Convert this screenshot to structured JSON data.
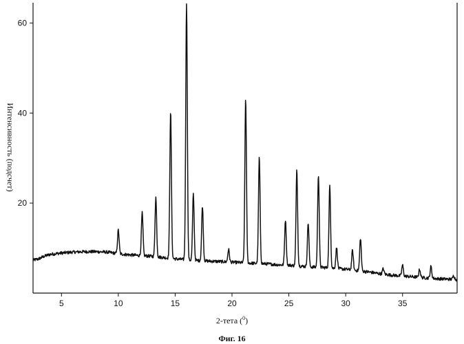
{
  "figure": {
    "caption": "Фиг. 16"
  },
  "chart_data": {
    "type": "line",
    "title": "",
    "xlabel": "2-тета (",
    "xlabel_sup": "0",
    "xlabel_close": ")",
    "ylabel": "Интенсивность (подсчет)",
    "xlim": [
      2.5,
      39.8
    ],
    "ylim": [
      0,
      64.5
    ],
    "x_ticks": [
      5,
      10,
      15,
      20,
      25,
      30,
      35
    ],
    "y_ticks": [
      20,
      40,
      60
    ],
    "x_tick_labels": [
      "5",
      "10",
      "15",
      "20",
      "25",
      "30",
      "35"
    ],
    "y_tick_labels": [
      "20",
      "40",
      "60"
    ],
    "grid": false,
    "line_color": "#111111",
    "baseline": [
      [
        2.5,
        7.3
      ],
      [
        3.0,
        7.6
      ],
      [
        3.5,
        8.2
      ],
      [
        4.0,
        8.6
      ],
      [
        5.0,
        8.9
      ],
      [
        6.0,
        9.1
      ],
      [
        7.0,
        9.2
      ],
      [
        8.0,
        9.2
      ],
      [
        9.0,
        9.1
      ],
      [
        9.6,
        8.9
      ],
      [
        10.5,
        8.6
      ],
      [
        11.5,
        8.4
      ],
      [
        12.8,
        8.2
      ],
      [
        14.0,
        7.9
      ],
      [
        15.0,
        7.6
      ],
      [
        16.5,
        7.3
      ],
      [
        18.0,
        7.1
      ],
      [
        19.0,
        7.0
      ],
      [
        20.5,
        6.8
      ],
      [
        22.0,
        6.6
      ],
      [
        23.0,
        6.5
      ],
      [
        24.0,
        6.3
      ],
      [
        25.0,
        6.2
      ],
      [
        26.0,
        6.0
      ],
      [
        27.0,
        5.8
      ],
      [
        28.0,
        5.7
      ],
      [
        29.0,
        5.5
      ],
      [
        30.0,
        5.3
      ],
      [
        31.0,
        5.0
      ],
      [
        32.0,
        4.7
      ],
      [
        33.0,
        4.3
      ],
      [
        34.0,
        4.0
      ],
      [
        35.0,
        3.8
      ],
      [
        36.0,
        3.6
      ],
      [
        37.0,
        3.4
      ],
      [
        38.0,
        3.2
      ],
      [
        39.0,
        3.1
      ],
      [
        39.8,
        3.0
      ]
    ],
    "peaks": [
      {
        "x": 10.0,
        "y": 14.0
      },
      {
        "x": 12.1,
        "y": 17.8
      },
      {
        "x": 13.3,
        "y": 21.3
      },
      {
        "x": 14.6,
        "y": 40.4
      },
      {
        "x": 16.0,
        "y": 64.5
      },
      {
        "x": 16.6,
        "y": 22.0
      },
      {
        "x": 17.4,
        "y": 19.4
      },
      {
        "x": 19.7,
        "y": 9.7
      },
      {
        "x": 21.2,
        "y": 43.2
      },
      {
        "x": 22.4,
        "y": 30.2
      },
      {
        "x": 24.7,
        "y": 16.3
      },
      {
        "x": 25.7,
        "y": 27.3
      },
      {
        "x": 26.7,
        "y": 15.6
      },
      {
        "x": 27.6,
        "y": 26.4
      },
      {
        "x": 28.6,
        "y": 23.9
      },
      {
        "x": 29.2,
        "y": 10.1
      },
      {
        "x": 30.6,
        "y": 9.5
      },
      {
        "x": 31.3,
        "y": 12.2
      },
      {
        "x": 33.3,
        "y": 5.4
      },
      {
        "x": 35.0,
        "y": 6.2
      },
      {
        "x": 36.5,
        "y": 5.3
      },
      {
        "x": 37.5,
        "y": 5.9
      },
      {
        "x": 39.5,
        "y": 3.9
      }
    ]
  }
}
